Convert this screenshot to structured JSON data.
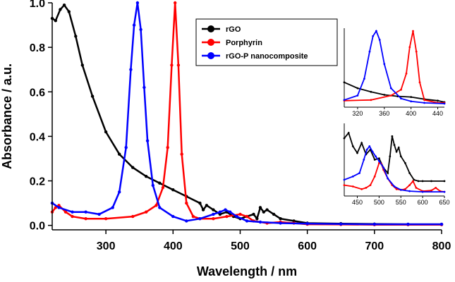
{
  "chart_data": {
    "type": "line",
    "title": "",
    "xlabel": "Wavelength / nm",
    "ylabel": "Absorbance / a.u.",
    "xlim": [
      220,
      800
    ],
    "ylim": [
      -0.02,
      1.0
    ],
    "xticks": [
      300,
      400,
      500,
      600,
      700,
      800
    ],
    "xtick_labels": [
      "300",
      "400",
      "500",
      "600",
      "700",
      "800"
    ],
    "yticks": [
      0.0,
      0.2,
      0.4,
      0.6,
      0.8,
      1.0
    ],
    "ytick_labels": [
      "0.0",
      "0.2",
      "0.4",
      "0.6",
      "0.8",
      "1.0"
    ],
    "grid": false,
    "legend_position": "top-right",
    "series": [
      {
        "name": "rGO",
        "color": "#000000",
        "x": [
          220,
          225,
          232,
          238,
          245,
          255,
          265,
          280,
          300,
          320,
          340,
          360,
          380,
          400,
          420,
          440,
          445,
          450,
          460,
          470,
          480,
          490,
          500,
          510,
          520,
          525,
          530,
          535,
          540,
          550,
          560,
          580,
          600,
          650,
          700,
          750,
          800
        ],
        "y": [
          0.93,
          0.92,
          0.97,
          0.99,
          0.96,
          0.85,
          0.72,
          0.58,
          0.42,
          0.32,
          0.26,
          0.22,
          0.19,
          0.16,
          0.13,
          0.1,
          0.07,
          0.09,
          0.07,
          0.05,
          0.06,
          0.04,
          0.03,
          0.04,
          0.05,
          0.03,
          0.08,
          0.06,
          0.07,
          0.05,
          0.03,
          0.02,
          0.01,
          0.008,
          0.006,
          0.005,
          0.005
        ]
      },
      {
        "name": "Porphyrin",
        "color": "#ff0000",
        "x": [
          220,
          225,
          230,
          240,
          250,
          270,
          300,
          340,
          360,
          375,
          385,
          392,
          398,
          403,
          408,
          413,
          420,
          430,
          440,
          460,
          480,
          500,
          510,
          520,
          540,
          560,
          580,
          600,
          650,
          700,
          750,
          800
        ],
        "y": [
          0.06,
          0.08,
          0.09,
          0.06,
          0.04,
          0.03,
          0.03,
          0.04,
          0.06,
          0.09,
          0.17,
          0.35,
          0.72,
          1.0,
          0.72,
          0.32,
          0.1,
          0.04,
          0.03,
          0.03,
          0.04,
          0.05,
          0.04,
          0.02,
          0.01,
          0.015,
          0.01,
          0.005,
          0.004,
          0.003,
          0.003,
          0.003
        ]
      },
      {
        "name": "rGO-P nanocomposite",
        "color": "#0000ff",
        "x": [
          220,
          230,
          250,
          270,
          290,
          310,
          320,
          330,
          337,
          342,
          347,
          352,
          357,
          362,
          370,
          380,
          400,
          420,
          440,
          460,
          470,
          478,
          485,
          495,
          510,
          530,
          560,
          600,
          650,
          700,
          750,
          800
        ],
        "y": [
          0.1,
          0.08,
          0.06,
          0.06,
          0.05,
          0.08,
          0.15,
          0.35,
          0.7,
          0.9,
          1.0,
          0.88,
          0.62,
          0.38,
          0.18,
          0.08,
          0.04,
          0.02,
          0.03,
          0.05,
          0.06,
          0.07,
          0.06,
          0.04,
          0.02,
          0.015,
          0.01,
          0.008,
          0.006,
          0.005,
          0.005,
          0.005
        ]
      }
    ],
    "insets": [
      {
        "position": "upper-right",
        "xlim": [
          300,
          450
        ],
        "xticks": [
          320,
          360,
          400,
          440
        ],
        "xtick_labels": [
          "320",
          "360",
          "400",
          "440"
        ],
        "ylim": [
          0,
          1
        ],
        "series": [
          {
            "name": "rGO",
            "color": "#000000",
            "x": [
              300,
              320,
              340,
              360,
              380,
              400,
              420,
              440,
              450
            ],
            "y": [
              0.3,
              0.22,
              0.17,
              0.13,
              0.11,
              0.1,
              0.07,
              0.05,
              0.03
            ]
          },
          {
            "name": "Porphyrin",
            "color": "#ff0000",
            "x": [
              300,
              340,
              370,
              385,
              393,
              398,
              403,
              408,
              413,
              420,
              440,
              450
            ],
            "y": [
              0.05,
              0.06,
              0.12,
              0.2,
              0.42,
              0.78,
              1.0,
              0.72,
              0.3,
              0.06,
              0.02,
              0.02
            ]
          },
          {
            "name": "rGO-P nanocomposite",
            "color": "#0000ff",
            "x": [
              300,
              320,
              330,
              338,
              343,
              348,
              353,
              360,
              370,
              385,
              400,
              420,
              450
            ],
            "y": [
              0.06,
              0.12,
              0.35,
              0.72,
              0.93,
              1.0,
              0.88,
              0.55,
              0.22,
              0.08,
              0.04,
              0.02,
              0.01
            ]
          }
        ]
      },
      {
        "position": "lower-right",
        "xlim": [
          420,
          650
        ],
        "xticks": [
          450,
          500,
          550,
          600,
          650
        ],
        "xtick_labels": [
          "450",
          "500",
          "550",
          "600",
          "650"
        ],
        "ylim": [
          0,
          1
        ],
        "series": [
          {
            "name": "rGO",
            "color": "#000000",
            "x": [
              420,
              430,
              440,
              450,
              460,
              470,
              480,
              490,
              500,
              510,
              520,
              525,
              530,
              535,
              540,
              545,
              550,
              560,
              570,
              580,
              590,
              600,
              620,
              650
            ],
            "y": [
              0.82,
              0.9,
              0.7,
              0.6,
              0.75,
              0.58,
              0.65,
              0.5,
              0.52,
              0.38,
              0.3,
              0.55,
              0.85,
              0.72,
              0.62,
              0.68,
              0.55,
              0.45,
              0.3,
              0.2,
              0.18,
              0.18,
              0.18,
              0.18
            ]
          },
          {
            "name": "Porphyrin",
            "color": "#ff0000",
            "x": [
              420,
              440,
              460,
              470,
              480,
              490,
              500,
              505,
              510,
              520,
              530,
              540,
              550,
              560,
              570,
              578,
              585,
              600,
              620,
              630,
              640,
              650
            ],
            "y": [
              0.12,
              0.1,
              0.06,
              0.08,
              0.12,
              0.25,
              0.45,
              0.44,
              0.35,
              0.22,
              0.12,
              0.06,
              0.05,
              0.06,
              0.12,
              0.18,
              0.08,
              0.03,
              0.04,
              0.08,
              0.03,
              0.02
            ]
          },
          {
            "name": "rGO-P nanocomposite",
            "color": "#0000ff",
            "x": [
              420,
              440,
              455,
              465,
              472,
              478,
              485,
              492,
              500,
              510,
              520,
              535,
              550,
              570,
              600,
              650
            ],
            "y": [
              0.2,
              0.25,
              0.3,
              0.5,
              0.65,
              0.7,
              0.62,
              0.55,
              0.48,
              0.38,
              0.22,
              0.1,
              0.05,
              0.03,
              0.02,
              0.02
            ]
          }
        ]
      }
    ]
  }
}
